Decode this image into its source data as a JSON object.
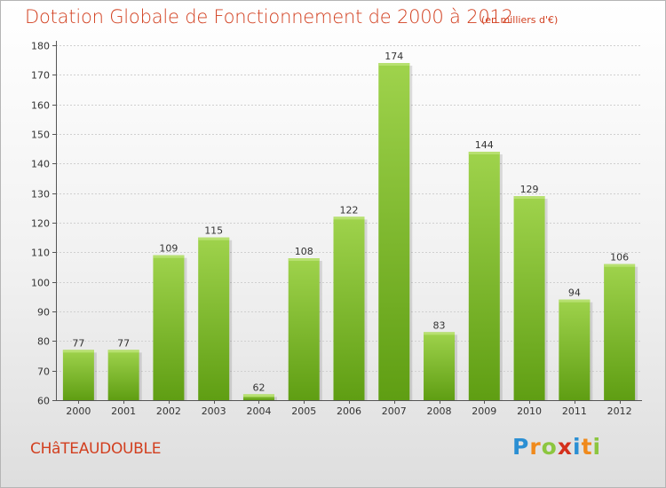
{
  "chart_data": {
    "type": "bar",
    "title": "Dotation Globale de Fonctionnement de 2000 à 2012",
    "subtitle": "(en milliers d'€)",
    "categories": [
      "2000",
      "2001",
      "2002",
      "2003",
      "2004",
      "2005",
      "2006",
      "2007",
      "2008",
      "2009",
      "2010",
      "2011",
      "2012"
    ],
    "values": [
      77,
      77,
      109,
      115,
      62,
      108,
      122,
      174,
      83,
      144,
      129,
      94,
      106
    ],
    "xlabel": "",
    "ylabel": "",
    "ylim": [
      60,
      180
    ],
    "yticks": [
      60,
      70,
      80,
      90,
      100,
      110,
      120,
      130,
      140,
      150,
      160,
      170,
      180
    ],
    "grid": true,
    "colors": {
      "bar": "#7fbd2e",
      "bar_light": "#9ed24a",
      "bar_dark": "#62a215",
      "title": "#d23f1f"
    }
  },
  "footer": {
    "place": "CHâTEAUDOUBLE"
  },
  "logo": {
    "letters": [
      {
        "char": "P",
        "color": "#2b8fd3"
      },
      {
        "char": "r",
        "color": "#f08a1c"
      },
      {
        "char": "o",
        "color": "#8cc63f"
      },
      {
        "char": "x",
        "color": "#d4301c"
      },
      {
        "char": "i",
        "color": "#2b8fd3"
      },
      {
        "char": "t",
        "color": "#f08a1c"
      },
      {
        "char": "i",
        "color": "#8cc63f"
      }
    ]
  }
}
